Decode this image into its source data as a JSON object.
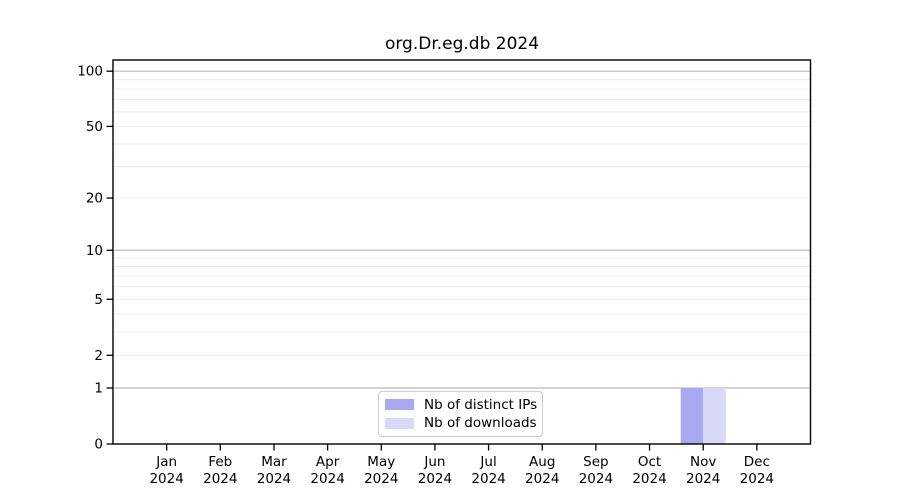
{
  "chart_data": {
    "type": "bar",
    "title": "org.Dr.eg.db 2024",
    "categories": [
      {
        "label": "Jan",
        "sub": "2024"
      },
      {
        "label": "Feb",
        "sub": "2024"
      },
      {
        "label": "Mar",
        "sub": "2024"
      },
      {
        "label": "Apr",
        "sub": "2024"
      },
      {
        "label": "May",
        "sub": "2024"
      },
      {
        "label": "Jun",
        "sub": "2024"
      },
      {
        "label": "Jul",
        "sub": "2024"
      },
      {
        "label": "Aug",
        "sub": "2024"
      },
      {
        "label": "Sep",
        "sub": "2024"
      },
      {
        "label": "Oct",
        "sub": "2024"
      },
      {
        "label": "Nov",
        "sub": "2024"
      },
      {
        "label": "Dec",
        "sub": "2024"
      }
    ],
    "series": [
      {
        "name": "Nb of distinct IPs",
        "color": "#a9a9f0",
        "values": [
          0,
          0,
          0,
          0,
          0,
          0,
          0,
          0,
          0,
          0,
          1,
          0
        ]
      },
      {
        "name": "Nb of downloads",
        "color": "#d8d8f7",
        "values": [
          0,
          0,
          0,
          0,
          0,
          0,
          0,
          0,
          0,
          0,
          1,
          0
        ]
      }
    ],
    "y_scale": "log1p",
    "ylim": [
      0,
      115
    ],
    "y_ticks": [
      0,
      1,
      2,
      5,
      10,
      20,
      50,
      100
    ],
    "gridlines_major": [
      1,
      10,
      100
    ],
    "gridlines_minor": [
      2,
      3,
      4,
      5,
      6,
      7,
      8,
      9,
      20,
      30,
      40,
      50,
      60,
      70,
      80,
      90
    ],
    "legend_position": "bottom-center",
    "colors": {
      "spine": "#000000",
      "tick_label": "#000000",
      "grid_major": "#c6c6c6",
      "grid_minor": "#ececec",
      "legend_border": "#cccccc",
      "background": "#ffffff"
    }
  }
}
